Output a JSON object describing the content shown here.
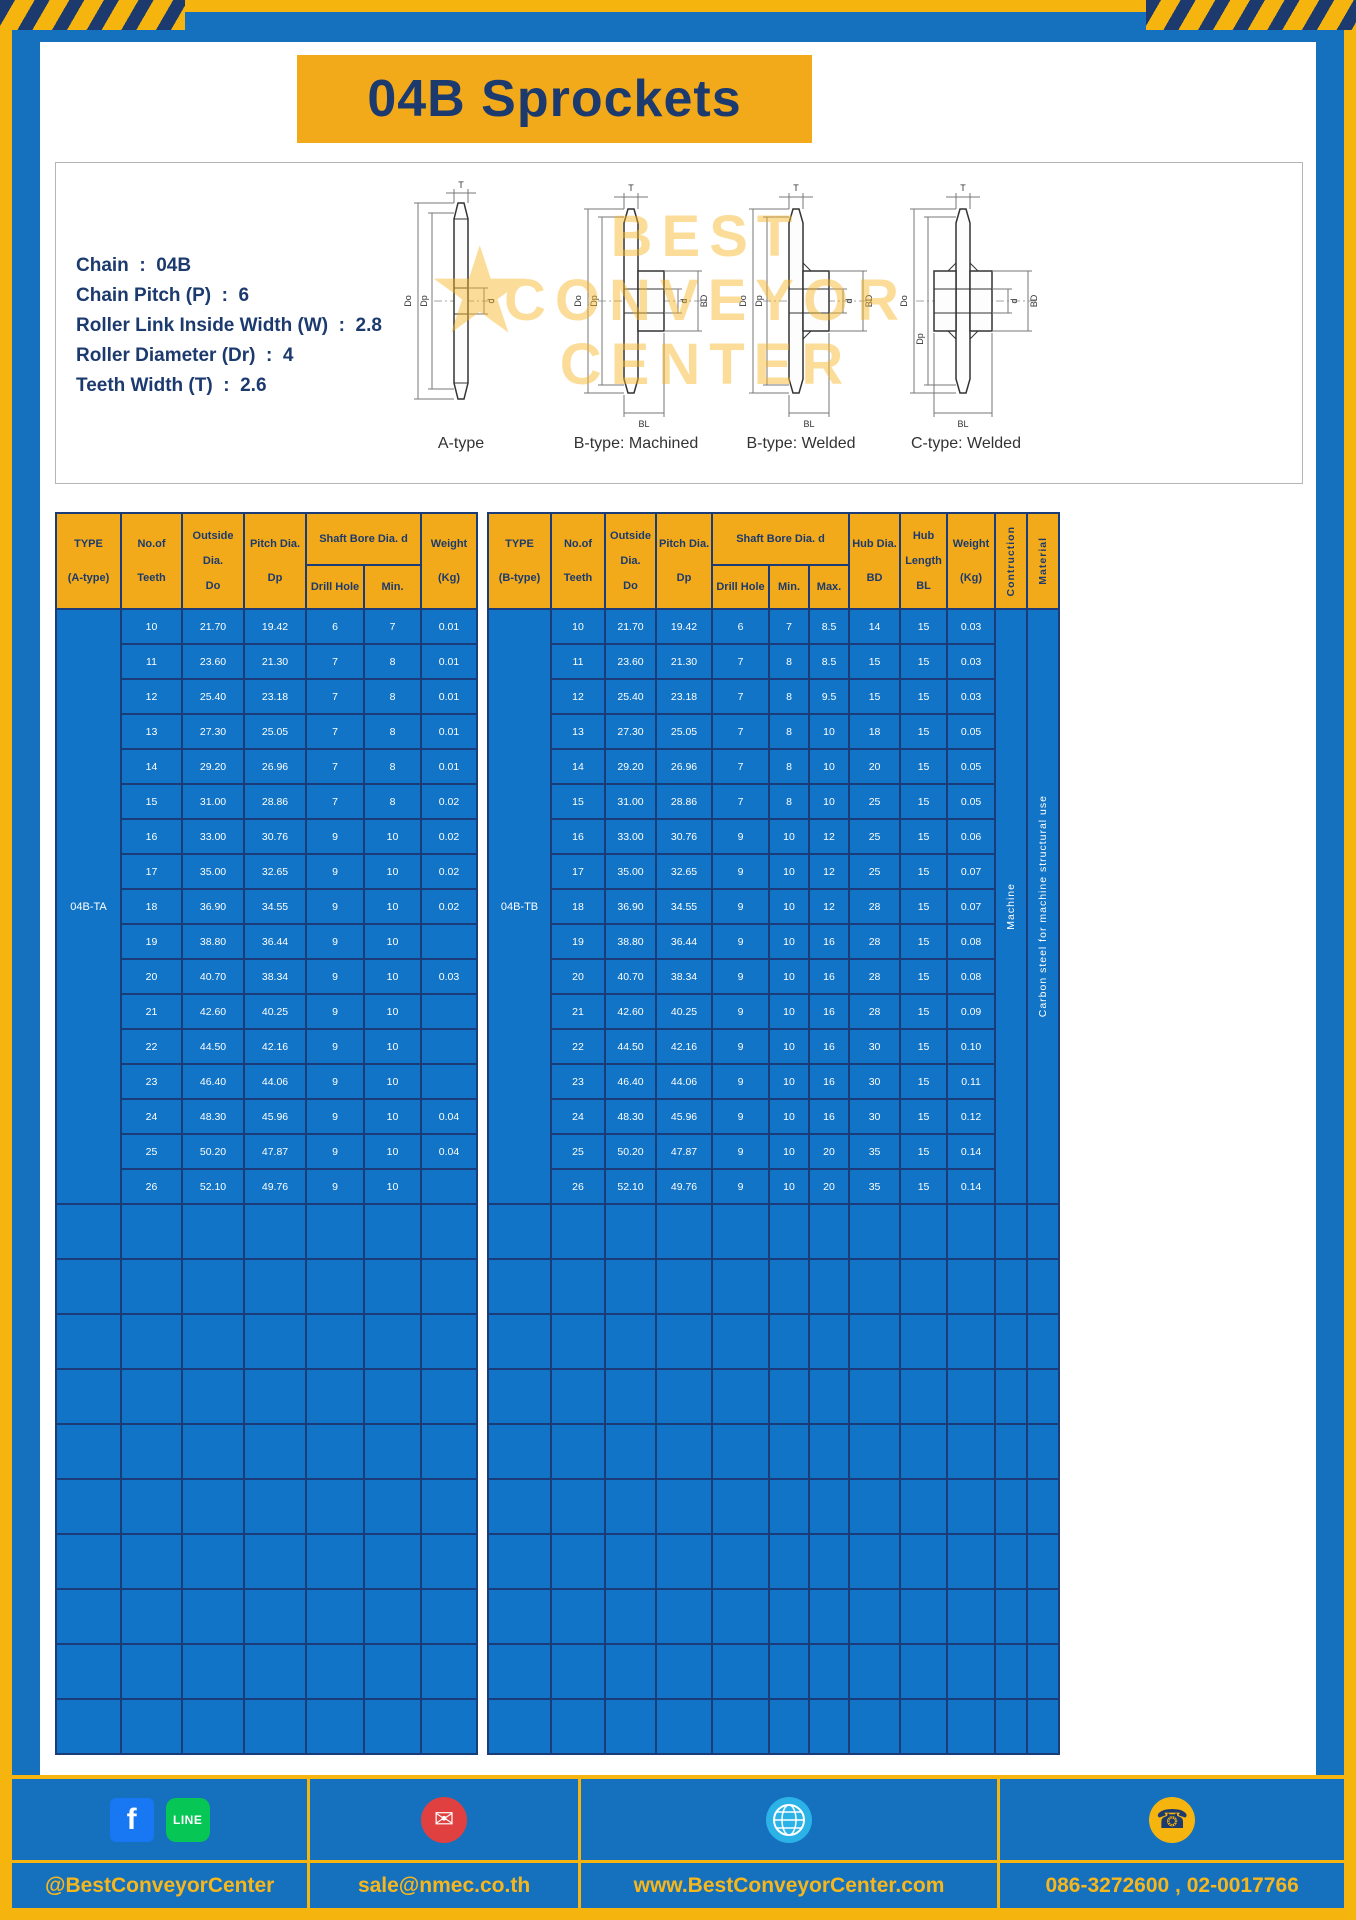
{
  "page": {
    "title": "04B Sprockets"
  },
  "specs": {
    "lines": [
      "Chain  :  04B",
      "Chain Pitch (P)  :  6",
      "Roller Link Inside Width (W)  :  2.8",
      "Roller Diameter (Dr)  :  4",
      "Teeth Width (T)  :  2.6"
    ]
  },
  "watermark": {
    "star": "★",
    "lines": [
      "BEST",
      "CONVEYOR",
      "CENTER"
    ]
  },
  "diagram": {
    "captions": [
      "A-type",
      "B-type: Machined",
      "B-type: Welded",
      "C-type: Welded"
    ],
    "dims": {
      "T": "T",
      "Do": "Do",
      "Dp": "Dp",
      "d": "d",
      "BD": "BD",
      "BL": "BL"
    }
  },
  "table_a": {
    "headers": {
      "type": [
        "TYPE",
        "(A-type)"
      ],
      "teeth": [
        "No.of",
        "Teeth"
      ],
      "outside": [
        "Outside",
        "Dia.",
        "Do"
      ],
      "pitch": [
        "Pitch Dia.",
        "Dp"
      ],
      "shaft_bore": "Shaft Bore Dia. d",
      "drill": "Drill Hole",
      "min": "Min.",
      "weight": [
        "Weight",
        "(Kg)"
      ]
    },
    "type_label": "04B-TA",
    "rows": [
      [
        "10",
        "21.70",
        "19.42",
        "6",
        "7",
        "0.01"
      ],
      [
        "11",
        "23.60",
        "21.30",
        "7",
        "8",
        "0.01"
      ],
      [
        "12",
        "25.40",
        "23.18",
        "7",
        "8",
        "0.01"
      ],
      [
        "13",
        "27.30",
        "25.05",
        "7",
        "8",
        "0.01"
      ],
      [
        "14",
        "29.20",
        "26.96",
        "7",
        "8",
        "0.01"
      ],
      [
        "15",
        "31.00",
        "28.86",
        "7",
        "8",
        "0.02"
      ],
      [
        "16",
        "33.00",
        "30.76",
        "9",
        "10",
        "0.02"
      ],
      [
        "17",
        "35.00",
        "32.65",
        "9",
        "10",
        "0.02"
      ],
      [
        "18",
        "36.90",
        "34.55",
        "9",
        "10",
        "0.02"
      ],
      [
        "19",
        "38.80",
        "36.44",
        "9",
        "10",
        ""
      ],
      [
        "20",
        "40.70",
        "38.34",
        "9",
        "10",
        "0.03"
      ],
      [
        "21",
        "42.60",
        "40.25",
        "9",
        "10",
        ""
      ],
      [
        "22",
        "44.50",
        "42.16",
        "9",
        "10",
        ""
      ],
      [
        "23",
        "46.40",
        "44.06",
        "9",
        "10",
        ""
      ],
      [
        "24",
        "48.30",
        "45.96",
        "9",
        "10",
        "0.04"
      ],
      [
        "25",
        "50.20",
        "47.87",
        "9",
        "10",
        "0.04"
      ],
      [
        "26",
        "52.10",
        "49.76",
        "9",
        "10",
        ""
      ]
    ],
    "empty_row_count": 10
  },
  "table_b": {
    "headers": {
      "type": [
        "TYPE",
        "(B-type)"
      ],
      "teeth": [
        "No.of",
        "Teeth"
      ],
      "outside": [
        "Outside",
        "Dia.",
        "Do"
      ],
      "pitch": [
        "Pitch Dia.",
        "Dp"
      ],
      "shaft_bore": "Shaft Bore Dia. d",
      "drill": "Drill Hole",
      "min": "Min.",
      "max": "Max.",
      "hub_dia": [
        "Hub Dia.",
        "BD"
      ],
      "hub_len": [
        "Hub",
        "Length",
        "BL"
      ],
      "weight": [
        "Weight",
        "(Kg)"
      ],
      "construction": "Contruction",
      "material": "Material"
    },
    "type_label": "04B-TB",
    "construction": "Machine",
    "material": "Carbon steel for machine structural use",
    "rows": [
      [
        "10",
        "21.70",
        "19.42",
        "6",
        "7",
        "8.5",
        "14",
        "15",
        "0.03"
      ],
      [
        "11",
        "23.60",
        "21.30",
        "7",
        "8",
        "8.5",
        "15",
        "15",
        "0.03"
      ],
      [
        "12",
        "25.40",
        "23.18",
        "7",
        "8",
        "9.5",
        "15",
        "15",
        "0.03"
      ],
      [
        "13",
        "27.30",
        "25.05",
        "7",
        "8",
        "10",
        "18",
        "15",
        "0.05"
      ],
      [
        "14",
        "29.20",
        "26.96",
        "7",
        "8",
        "10",
        "20",
        "15",
        "0.05"
      ],
      [
        "15",
        "31.00",
        "28.86",
        "7",
        "8",
        "10",
        "25",
        "15",
        "0.05"
      ],
      [
        "16",
        "33.00",
        "30.76",
        "9",
        "10",
        "12",
        "25",
        "15",
        "0.06"
      ],
      [
        "17",
        "35.00",
        "32.65",
        "9",
        "10",
        "12",
        "25",
        "15",
        "0.07"
      ],
      [
        "18",
        "36.90",
        "34.55",
        "9",
        "10",
        "12",
        "28",
        "15",
        "0.07"
      ],
      [
        "19",
        "38.80",
        "36.44",
        "9",
        "10",
        "16",
        "28",
        "15",
        "0.08"
      ],
      [
        "20",
        "40.70",
        "38.34",
        "9",
        "10",
        "16",
        "28",
        "15",
        "0.08"
      ],
      [
        "21",
        "42.60",
        "40.25",
        "9",
        "10",
        "16",
        "28",
        "15",
        "0.09"
      ],
      [
        "22",
        "44.50",
        "42.16",
        "9",
        "10",
        "16",
        "30",
        "15",
        "0.10"
      ],
      [
        "23",
        "46.40",
        "44.06",
        "9",
        "10",
        "16",
        "30",
        "15",
        "0.11"
      ],
      [
        "24",
        "48.30",
        "45.96",
        "9",
        "10",
        "16",
        "30",
        "15",
        "0.12"
      ],
      [
        "25",
        "50.20",
        "47.87",
        "9",
        "10",
        "20",
        "35",
        "15",
        "0.14"
      ],
      [
        "26",
        "52.10",
        "49.76",
        "9",
        "10",
        "20",
        "35",
        "15",
        "0.14"
      ]
    ],
    "empty_row_count": 10
  },
  "footer": {
    "facebook_glyph": "f",
    "line_glyph": "LINE",
    "mail_glyph": "✉",
    "phone_glyph": "☎",
    "sections": [
      {
        "text": "@BestConveyorCenter"
      },
      {
        "text": "sale@nmec.co.th"
      },
      {
        "text": "www.BestConveyorCenter.com"
      },
      {
        "text": "086-3272600 , 02-0017766"
      }
    ]
  }
}
